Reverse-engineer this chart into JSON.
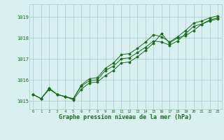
{
  "xlabel": "Graphe pression niveau de la mer (hPa)",
  "x": [
    0,
    1,
    2,
    3,
    4,
    5,
    6,
    7,
    8,
    9,
    10,
    11,
    12,
    13,
    14,
    15,
    16,
    17,
    18,
    19,
    20,
    21,
    22,
    23
  ],
  "series1": [
    1015.3,
    1015.1,
    1015.6,
    1015.3,
    1015.2,
    1015.1,
    1015.7,
    1015.95,
    1016.0,
    1016.45,
    1016.65,
    1017.0,
    1017.05,
    1017.3,
    1017.55,
    1017.85,
    1017.8,
    1017.65,
    1017.85,
    1018.2,
    1018.55,
    1018.65,
    1018.85,
    1018.95
  ],
  "series2": [
    1015.3,
    1015.1,
    1015.55,
    1015.3,
    1015.2,
    1015.05,
    1015.55,
    1015.85,
    1015.9,
    1016.2,
    1016.45,
    1016.8,
    1016.85,
    1017.1,
    1017.4,
    1017.75,
    1018.2,
    1017.75,
    1018.0,
    1018.1,
    1018.35,
    1018.65,
    1018.8,
    1018.9
  ],
  "series3": [
    1015.3,
    1015.1,
    1015.6,
    1015.3,
    1015.2,
    1015.1,
    1015.75,
    1016.05,
    1016.1,
    1016.55,
    1016.8,
    1017.2,
    1017.25,
    1017.5,
    1017.8,
    1018.15,
    1018.05,
    1017.8,
    1018.05,
    1018.35,
    1018.7,
    1018.8,
    1018.95,
    1019.05
  ],
  "line_color": "#1a6b1a",
  "bg_color": "#d8f0f0",
  "grid_color": "#a8c8c8",
  "text_color": "#1a6b1a",
  "ylim_min": 1014.6,
  "ylim_max": 1019.6,
  "yticks": [
    1015,
    1016,
    1017,
    1018,
    1019
  ]
}
